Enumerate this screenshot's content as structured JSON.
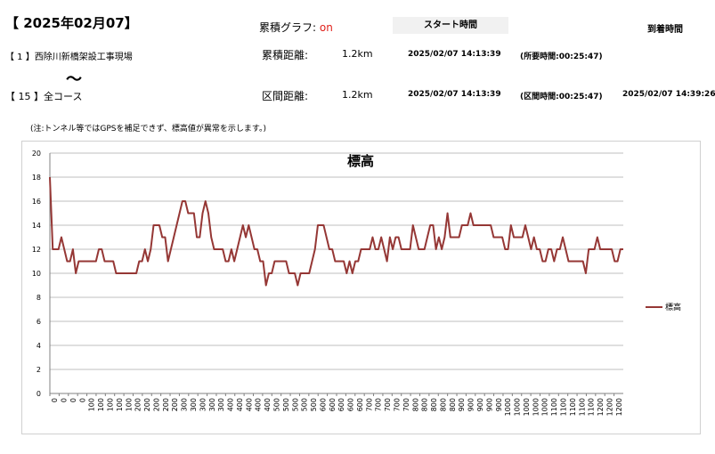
{
  "header": {
    "date_title": "【 2025年02月07】",
    "cumulative_label": "累積グラフ:",
    "cumulative_value": "on",
    "start_time_label": "スタート時間",
    "arrival_time_label": "到着時間"
  },
  "row1": {
    "location": "【 1 】西除川新橋架設工事現場",
    "distance_label": "累積距離:",
    "distance": "1.2km",
    "start_time": "2025/02/07 14:13:39",
    "duration": "(所要時間:00:25:47)"
  },
  "tilde": "〜",
  "row2": {
    "location": "【 15 】全コース",
    "distance_label": "区間距離:",
    "distance": "1.2km",
    "start_time": "2025/02/07 14:13:39",
    "duration": "(区間時間:00:25:47)",
    "arrival_time": "2025/02/07 14:39:26"
  },
  "note": "(注:トンネル等ではGPSを補足できず、標高値が異常を示します。)",
  "colors": {
    "line": "#953735",
    "grid": "#bfbfbf",
    "on": "#e0201b"
  },
  "chart_data": {
    "type": "line",
    "title": "標高",
    "xlabel": "",
    "ylabel": "",
    "ylim": [
      0,
      20
    ],
    "yticks": [
      0,
      2,
      4,
      6,
      8,
      10,
      12,
      14,
      16,
      18,
      20
    ],
    "grid": true,
    "legend_position": "right",
    "x_tick_labels": [
      "0",
      "0",
      "0",
      "0",
      "100",
      "100",
      "100",
      "100",
      "100",
      "200",
      "200",
      "200",
      "200",
      "200",
      "300",
      "300",
      "300",
      "300",
      "300",
      "400",
      "400",
      "400",
      "400",
      "400",
      "500",
      "500",
      "500",
      "500",
      "500",
      "600",
      "600",
      "600",
      "600",
      "600",
      "700",
      "700",
      "700",
      "700",
      "700",
      "800",
      "800",
      "800",
      "800",
      "800",
      "900",
      "900",
      "900",
      "900",
      "900",
      "1000",
      "1000",
      "1000",
      "1000",
      "1000",
      "1100",
      "1100",
      "1100",
      "1100",
      "1100",
      "1200",
      "1200",
      "1200"
    ],
    "series": [
      {
        "name": "標高",
        "values": [
          18,
          12,
          12,
          12,
          13,
          12,
          11,
          11,
          12,
          10,
          11,
          11,
          11,
          11,
          11,
          11,
          11,
          12,
          12,
          11,
          11,
          11,
          11,
          10,
          10,
          10,
          10,
          10,
          10,
          10,
          10,
          11,
          11,
          12,
          11,
          12,
          14,
          14,
          14,
          13,
          13,
          11,
          12,
          13,
          14,
          15,
          16,
          16,
          15,
          15,
          15,
          13,
          13,
          15,
          16,
          15,
          13,
          12,
          12,
          12,
          12,
          11,
          11,
          12,
          11,
          12,
          13,
          14,
          13,
          14,
          13,
          12,
          12,
          11,
          11,
          9,
          10,
          10,
          11,
          11,
          11,
          11,
          11,
          10,
          10,
          10,
          9,
          10,
          10,
          10,
          10,
          11,
          12,
          14,
          14,
          14,
          13,
          12,
          12,
          11,
          11,
          11,
          11,
          10,
          11,
          10,
          11,
          11,
          12,
          12,
          12,
          12,
          13,
          12,
          12,
          13,
          12,
          11,
          13,
          12,
          13,
          13,
          12,
          12,
          12,
          12,
          14,
          13,
          12,
          12,
          12,
          13,
          14,
          14,
          12,
          13,
          12,
          13,
          15,
          13,
          13,
          13,
          13,
          14,
          14,
          14,
          15,
          14,
          14,
          14,
          14,
          14,
          14,
          14,
          13,
          13,
          13,
          13,
          12,
          12,
          14,
          13,
          13,
          13,
          13,
          14,
          13,
          12,
          13,
          12,
          12,
          11,
          11,
          12,
          12,
          11,
          12,
          12,
          13,
          12,
          11,
          11,
          11,
          11,
          11,
          11,
          10,
          12,
          12,
          12,
          13,
          12,
          12,
          12,
          12,
          12,
          11,
          11,
          12,
          12
        ]
      }
    ]
  }
}
